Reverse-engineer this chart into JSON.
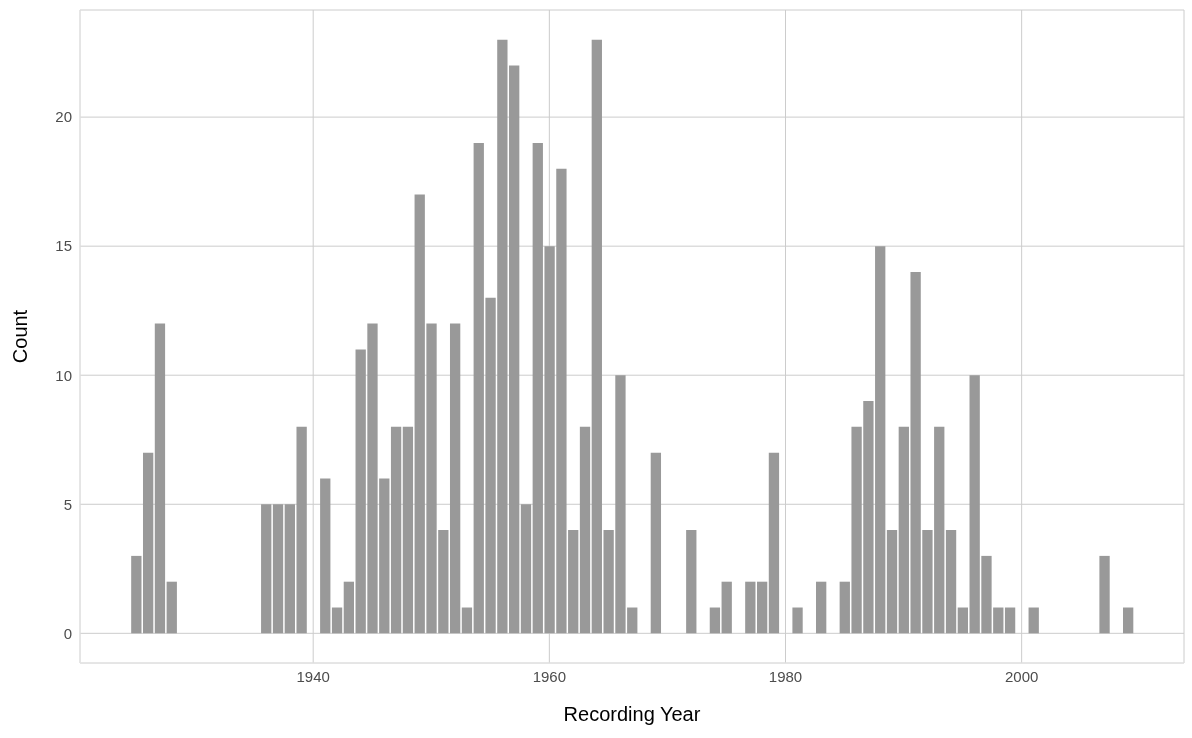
{
  "chart_data": {
    "type": "histogram",
    "xlabel": "Recording Year",
    "ylabel": "Count",
    "bins": [
      1924.5,
      1925.5,
      1926.5,
      1927.5,
      1928.5,
      1929.5,
      1930.5,
      1931.5,
      1932.5,
      1933.5,
      1934.5,
      1935.5,
      1936.5,
      1937.5,
      1938.5,
      1939.5,
      1940.5,
      1941.5,
      1942.5,
      1943.5,
      1944.5,
      1945.5,
      1946.5,
      1947.5,
      1948.5,
      1949.5,
      1950.5,
      1951.5,
      1952.5,
      1953.5,
      1954.5,
      1955.5,
      1956.5,
      1957.5,
      1958.5,
      1959.5,
      1960.5,
      1961.5,
      1962.5,
      1963.5,
      1964.5,
      1965.5,
      1966.5,
      1967.5,
      1968.5,
      1969.5,
      1970.5,
      1971.5,
      1972.5,
      1973.5,
      1974.5,
      1975.5,
      1976.5,
      1977.5,
      1978.5,
      1979.5,
      1980.5,
      1981.5,
      1982.5,
      1983.5,
      1984.5,
      1985.5,
      1986.5,
      1987.5,
      1988.5,
      1989.5,
      1990.5,
      1991.5,
      1992.5,
      1993.5,
      1994.5,
      1995.5,
      1996.5,
      1997.5,
      1998.5,
      1999.5,
      2000.5,
      2001.5,
      2002.5,
      2003.5,
      2004.5,
      2005.5,
      2006.5,
      2007.5,
      2008.5,
      2009.5
    ],
    "values": [
      3,
      7,
      12,
      2,
      0,
      0,
      0,
      0,
      0,
      0,
      0,
      5,
      5,
      5,
      8,
      0,
      6,
      1,
      2,
      11,
      12,
      6,
      8,
      8,
      17,
      12,
      4,
      12,
      1,
      19,
      13,
      23,
      22,
      5,
      19,
      15,
      18,
      4,
      8,
      23,
      4,
      10,
      1,
      0,
      7,
      0,
      0,
      4,
      0,
      1,
      2,
      0,
      2,
      2,
      7,
      0,
      1,
      0,
      2,
      0,
      2,
      8,
      9,
      15,
      4,
      8,
      14,
      4,
      8,
      4,
      1,
      10,
      3,
      1,
      1,
      0,
      1,
      0,
      0,
      0,
      0,
      0,
      3,
      0,
      1
    ],
    "color": "#999999",
    "xlim": [
      1920.25,
      2013.75
    ],
    "xticks": [
      1940,
      1960,
      1980,
      2000
    ],
    "ylim": [
      -1.15,
      24.15
    ],
    "yticks": [
      0,
      5,
      10,
      15,
      20
    ],
    "grid": true
  }
}
